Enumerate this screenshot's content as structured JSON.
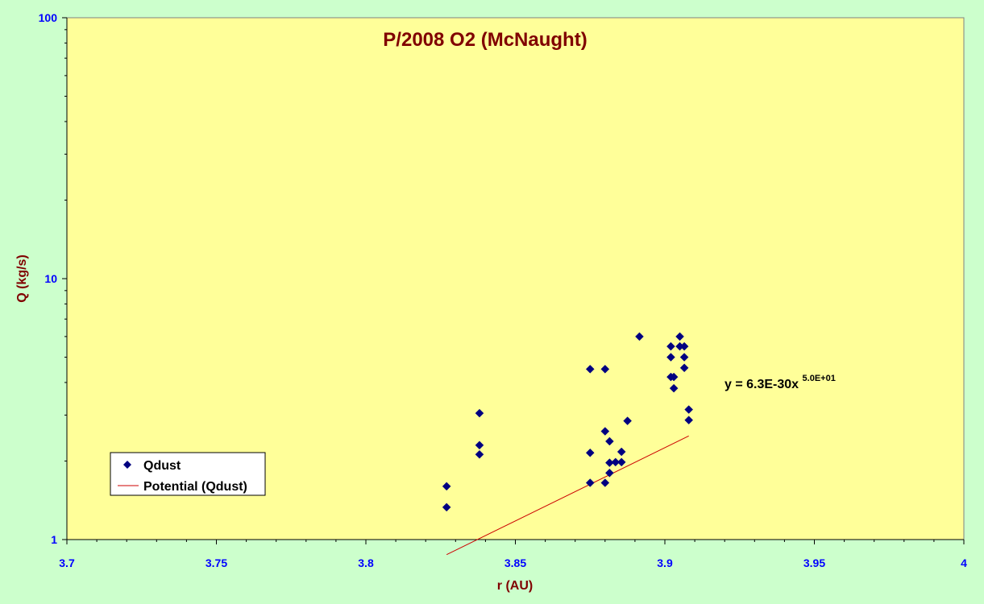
{
  "chart_data": {
    "type": "scatter",
    "title": "P/2008 O2 (McNaught)",
    "xlabel": "r (AU)",
    "ylabel": "Q (kg/s)",
    "xlim": [
      3.7,
      4.0
    ],
    "ylim": [
      1,
      100
    ],
    "yscale": "log",
    "x_ticks": [
      3.7,
      3.75,
      3.8,
      3.85,
      3.9,
      3.95,
      4.0
    ],
    "x_tick_labels": [
      "3.7",
      "3.75",
      "3.8",
      "3.85",
      "3.9",
      "3.95",
      "4"
    ],
    "y_ticks": [
      1,
      10,
      100
    ],
    "y_tick_labels": [
      "1",
      "10",
      "100"
    ],
    "grid": false,
    "legend_position": "bottom-left",
    "series": [
      {
        "name": "Qdust",
        "marker": "diamond",
        "color": "#000080",
        "points": [
          [
            3.827,
            1.6
          ],
          [
            3.827,
            1.33
          ],
          [
            3.838,
            3.05
          ],
          [
            3.838,
            2.3
          ],
          [
            3.838,
            2.12
          ],
          [
            3.875,
            4.5
          ],
          [
            3.875,
            2.15
          ],
          [
            3.875,
            1.65
          ],
          [
            3.88,
            4.5
          ],
          [
            3.88,
            2.6
          ],
          [
            3.88,
            1.65
          ],
          [
            3.8815,
            2.38
          ],
          [
            3.8815,
            1.97
          ],
          [
            3.8815,
            1.8
          ],
          [
            3.8835,
            1.98
          ],
          [
            3.8855,
            2.17
          ],
          [
            3.8855,
            1.98
          ],
          [
            3.8875,
            2.85
          ],
          [
            3.8915,
            6.0
          ],
          [
            3.902,
            5.5
          ],
          [
            3.902,
            5.0
          ],
          [
            3.902,
            4.2
          ],
          [
            3.903,
            4.2
          ],
          [
            3.903,
            3.8
          ],
          [
            3.905,
            6.0
          ],
          [
            3.905,
            5.5
          ],
          [
            3.9065,
            5.5
          ],
          [
            3.9065,
            5.0
          ],
          [
            3.9065,
            4.55
          ],
          [
            3.908,
            3.15
          ],
          [
            3.908,
            2.87
          ]
        ]
      },
      {
        "name": "Potential (Qdust)",
        "kind": "trendline",
        "color": "#cc0000",
        "x_range": [
          3.827,
          3.908
        ]
      }
    ],
    "trendline_equation": {
      "coefficient": 6.3e-30,
      "exponent": 50.0,
      "text_main": "y = 6.3E-30x",
      "text_sup": "5.0E+01"
    }
  }
}
